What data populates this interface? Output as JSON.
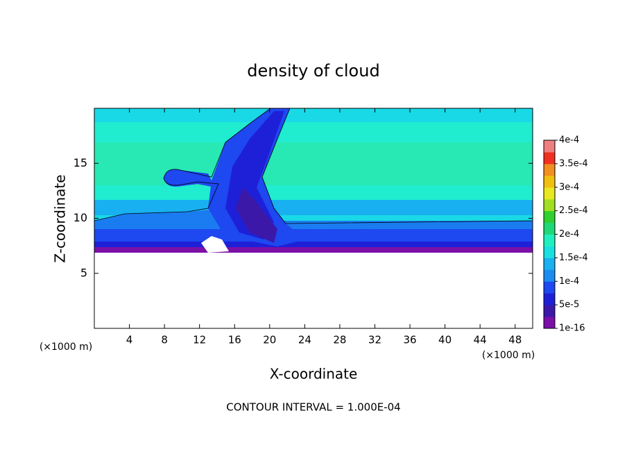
{
  "chart_data": {
    "type": "contour",
    "title": "density of cloud",
    "xlabel": "X-coordinate",
    "ylabel": "Z-coordinate",
    "x_unit_label": "(×1000 m)",
    "xlim": [
      0,
      50
    ],
    "xticks": [
      4,
      8,
      12,
      16,
      20,
      24,
      28,
      32,
      36,
      40,
      44,
      48
    ],
    "ylim": [
      0,
      20
    ],
    "yticks": [
      5,
      10,
      15
    ],
    "grid": false,
    "annotation": "CONTOUR INTERVAL = 1.000E-04",
    "colorbar": {
      "clim": [
        1e-16,
        0.0004
      ],
      "colors": [
        "#7a10a8",
        "#3c18a8",
        "#1e20d8",
        "#1e48f0",
        "#1a8cf0",
        "#18b0f0",
        "#18e0e0",
        "#20f0c0",
        "#20d878",
        "#30d030",
        "#a0e020",
        "#e8e820",
        "#f0c010",
        "#f09020",
        "#f03020",
        "#f08080"
      ],
      "ticks": [
        {
          "value": 1e-16,
          "label": "1e-16"
        },
        {
          "value": 5e-05,
          "label": "5e-5"
        },
        {
          "value": 0.0001,
          "label": "1e-4"
        },
        {
          "value": 0.00015,
          "label": "1.5e-4"
        },
        {
          "value": 0.0002,
          "label": "2e-4"
        },
        {
          "value": 0.00025,
          "label": "2.5e-4"
        },
        {
          "value": 0.0003,
          "label": "3e-4"
        },
        {
          "value": 0.00035,
          "label": "3.5e-4"
        },
        {
          "value": 0.0004,
          "label": "4e-4"
        }
      ]
    }
  }
}
